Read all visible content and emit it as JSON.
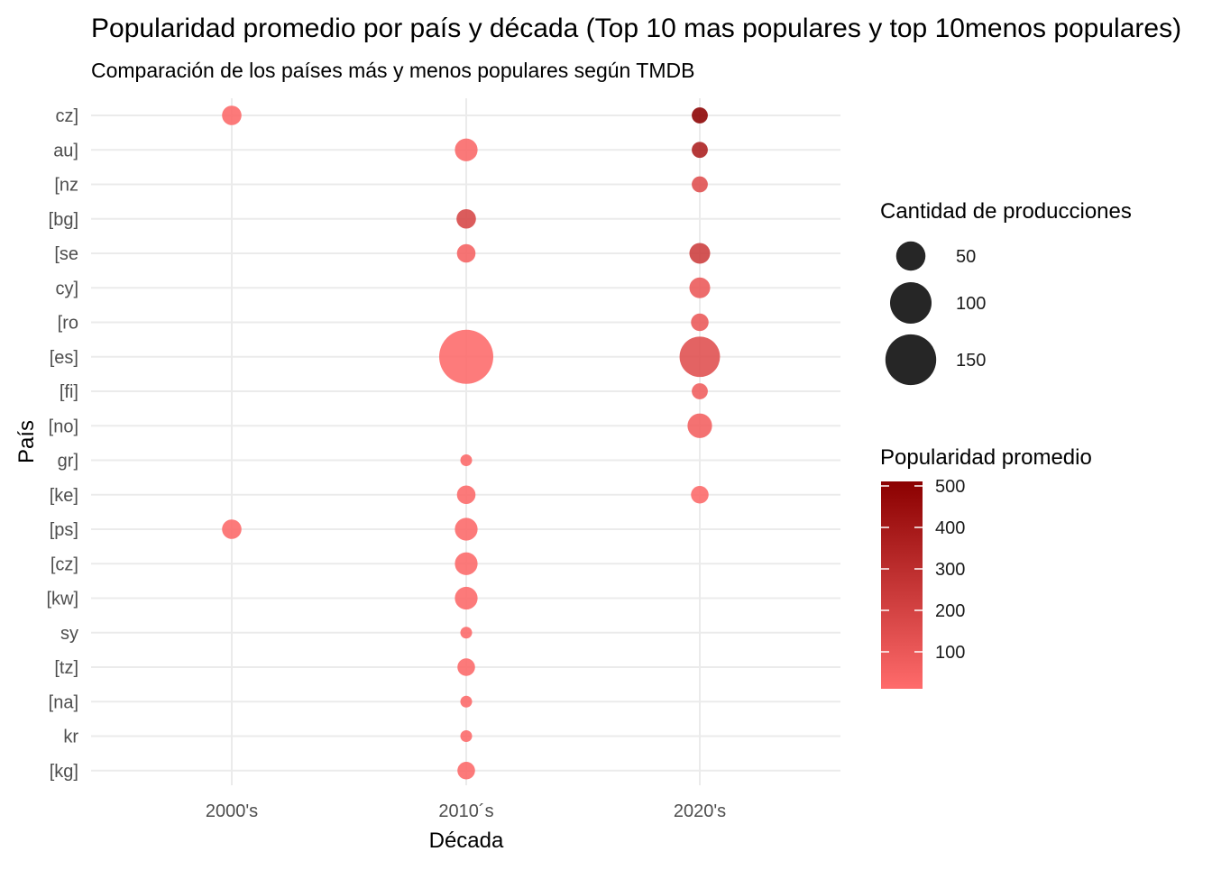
{
  "chart_data": {
    "type": "scatter",
    "title": "Popularidad promedio por país y década (Top 10 mas populares y top 10menos populares)",
    "subtitle": "Comparación de los países más y menos populares según TMDB",
    "xlabel": "Década",
    "ylabel": "País",
    "x_categories": [
      "2000's",
      "2010´s",
      "2020's"
    ],
    "y_categories": [
      "cz]",
      "au]",
      "[nz",
      "[bg]",
      "[se",
      "cy]",
      "[ro",
      "[es]",
      "[fi]",
      "[no]",
      "gr]",
      "[ke]",
      "[ps]",
      "[cz]",
      "[kw]",
      "sy",
      "[tz]",
      "[na]",
      "kr",
      "[kg]"
    ],
    "grid": true,
    "points": [
      {
        "x": "2000's",
        "y": "cz]",
        "count": 22,
        "popularity": 15
      },
      {
        "x": "2000's",
        "y": "[ps]",
        "count": 22,
        "popularity": 15
      },
      {
        "x": "2010´s",
        "y": "au]",
        "count": 30,
        "popularity": 25
      },
      {
        "x": "2010´s",
        "y": "[bg]",
        "count": 22,
        "popularity": 175
      },
      {
        "x": "2010´s",
        "y": "[se",
        "count": 20,
        "popularity": 45
      },
      {
        "x": "2010´s",
        "y": "[es]",
        "count": 170,
        "popularity": 10
      },
      {
        "x": "2010´s",
        "y": "gr]",
        "count": 8,
        "popularity": 15
      },
      {
        "x": "2010´s",
        "y": "[ke]",
        "count": 20,
        "popularity": 15
      },
      {
        "x": "2010´s",
        "y": "[ps]",
        "count": 30,
        "popularity": 15
      },
      {
        "x": "2010´s",
        "y": "[cz]",
        "count": 30,
        "popularity": 15
      },
      {
        "x": "2010´s",
        "y": "[kw]",
        "count": 30,
        "popularity": 15
      },
      {
        "x": "2010´s",
        "y": "sy",
        "count": 8,
        "popularity": 15
      },
      {
        "x": "2010´s",
        "y": "[tz]",
        "count": 18,
        "popularity": 15
      },
      {
        "x": "2010´s",
        "y": "[na]",
        "count": 8,
        "popularity": 15
      },
      {
        "x": "2010´s",
        "y": "kr",
        "count": 8,
        "popularity": 15
      },
      {
        "x": "2010´s",
        "y": "[kg]",
        "count": 18,
        "popularity": 15
      },
      {
        "x": "2020's",
        "y": "cz]",
        "count": 15,
        "popularity": 500
      },
      {
        "x": "2020's",
        "y": "au]",
        "count": 15,
        "popularity": 360
      },
      {
        "x": "2020's",
        "y": "[nz",
        "count": 15,
        "popularity": 140
      },
      {
        "x": "2020's",
        "y": "[se",
        "count": 25,
        "popularity": 220
      },
      {
        "x": "2020's",
        "y": "cy]",
        "count": 25,
        "popularity": 90
      },
      {
        "x": "2020's",
        "y": "[ro",
        "count": 18,
        "popularity": 90
      },
      {
        "x": "2020's",
        "y": "[es]",
        "count": 95,
        "popularity": 140
      },
      {
        "x": "2020's",
        "y": "[fi]",
        "count": 15,
        "popularity": 70
      },
      {
        "x": "2020's",
        "y": "[no]",
        "count": 35,
        "popularity": 55
      },
      {
        "x": "2020's",
        "y": "[ke]",
        "count": 18,
        "popularity": 15
      }
    ],
    "size_legend": {
      "title": "Cantidad de producciones",
      "values": [
        50,
        100,
        150
      ],
      "labels": [
        "50",
        "100",
        "150"
      ],
      "color": "#262626"
    },
    "color_legend": {
      "title": "Popularidad promedio",
      "min": 0,
      "max": 500,
      "ticks": [
        100,
        200,
        300,
        400,
        500
      ],
      "tick_labels": [
        "100",
        "200",
        "300",
        "400",
        "500"
      ],
      "low_color": "#ff6b6b",
      "high_color": "#8b0000"
    },
    "legend_position": "right"
  }
}
